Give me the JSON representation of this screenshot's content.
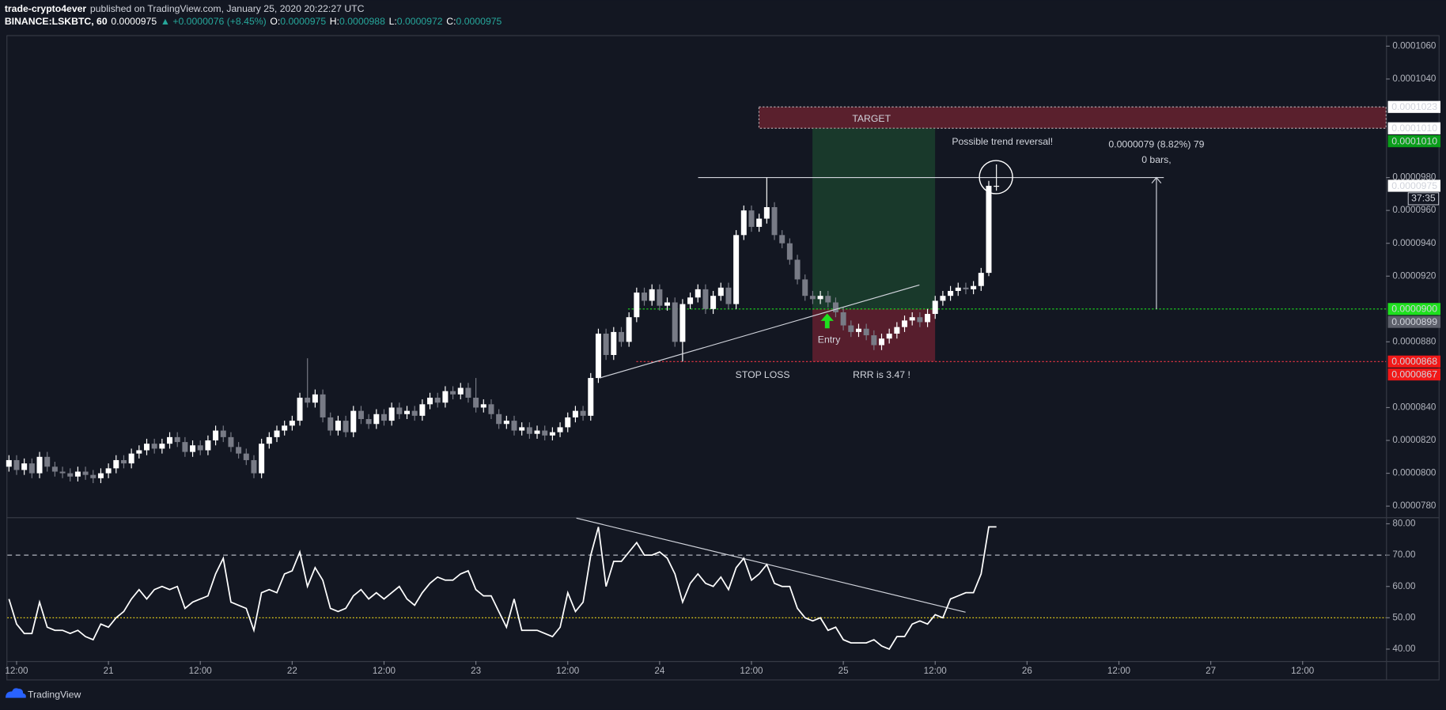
{
  "header": {
    "author": "trade-crypto4ever",
    "byline": "published on TradingView.com, January 25, 2020 20:22:27 UTC",
    "symbol": "BINANCE:LSKBTC, 60",
    "last": "0.0000975",
    "change": "▲ +0.0000076 (+8.45%)",
    "ohlc": [
      {
        "key": "O:",
        "value": "0.0000975"
      },
      {
        "key": "H:",
        "value": "0.0000988"
      },
      {
        "key": "L:",
        "value": "0.0000972"
      },
      {
        "key": "C:",
        "value": "0.0000975"
      }
    ]
  },
  "footer": {
    "brand": "TradingView"
  },
  "chart_data": [
    {
      "type": "candlestick",
      "up_color": "#ffffff",
      "down_color": "#787b86",
      "xlim": [
        -0.205,
        179.9
      ],
      "ylim": [
        7.738e-05,
        0.00010667
      ],
      "yticks": [
        {
          "value": 0.000106,
          "label": "0.0001060"
        },
        {
          "value": 0.000104,
          "label": "0.0001040"
        },
        {
          "value": 9.8e-05,
          "label": "0.0000980"
        },
        {
          "value": 9.6e-05,
          "label": "0.0000960"
        },
        {
          "value": 9.4e-05,
          "label": "0.0000940"
        },
        {
          "value": 9.2e-05,
          "label": "0.0000920"
        },
        {
          "value": 8.8e-05,
          "label": "0.0000880"
        },
        {
          "value": 8.4e-05,
          "label": "0.0000840"
        },
        {
          "value": 8.2e-05,
          "label": "0.0000820"
        },
        {
          "value": 8e-05,
          "label": "0.0000800"
        },
        {
          "value": 7.8e-05,
          "label": "0.0000780"
        }
      ],
      "price_labels": [
        {
          "value": 0.0001023,
          "label": "0.0001023",
          "color": "#ffffff",
          "text_color": "#131722"
        },
        {
          "value": 0.000101,
          "label": "0.0001010",
          "color": "#ffffff",
          "text_color": "#131722"
        },
        {
          "value": 0.000101,
          "label": "0.0001010",
          "color": "#0a9e1a",
          "text_color": "#ffffff"
        },
        {
          "value": 9.75e-05,
          "label": "0.0000975",
          "color": "#ffffff",
          "text_color": "#131722"
        },
        {
          "value": 9e-05,
          "label": "0.0000900",
          "color": "#1ee01e",
          "text_color": "#131722"
        },
        {
          "value": 8.99e-05,
          "label": "0.0000899",
          "color": "#5d606b",
          "text_color": "#ffffff"
        },
        {
          "value": 8.68e-05,
          "label": "0.0000868",
          "color": "#f21818",
          "text_color": "#ffffff"
        },
        {
          "value": 8.67e-05,
          "label": "0.0000867",
          "color": "#f21818",
          "text_color": "#ffffff"
        }
      ],
      "countdown": "37:35",
      "annotations": {
        "target": "TARGET",
        "reversal": "Possible trend reversal!",
        "measure": "0.0000079 (8.82%) 79",
        "bars": "0 bars,",
        "entry": "Entry",
        "stop": "STOP LOSS",
        "rrr": "RRR is 3.47 !"
      },
      "open": [
        8.04e-05,
        8.08e-05,
        8.02e-05,
        8.06e-05,
        8e-05,
        8.1e-05,
        8.04e-05,
        8.01e-05,
        8e-05,
        7.98e-05,
        8.01e-05,
        7.99e-05,
        7.97e-05,
        8e-05,
        8.03e-05,
        8.08e-05,
        8.06e-05,
        8.12e-05,
        8.14e-05,
        8.18e-05,
        8.15e-05,
        8.18e-05,
        8.22e-05,
        8.19e-05,
        8.13e-05,
        8.17e-05,
        8.14e-05,
        8.2e-05,
        8.26e-05,
        8.22e-05,
        8.16e-05,
        8.12e-05,
        8.08e-05,
        8e-05,
        8.18e-05,
        8.22e-05,
        8.26e-05,
        8.29e-05,
        8.32e-05,
        8.46e-05,
        8.43e-05,
        8.48e-05,
        8.34e-05,
        8.26e-05,
        8.32e-05,
        8.25e-05,
        8.38e-05,
        8.33e-05,
        8.3e-05,
        8.36e-05,
        8.32e-05,
        8.4e-05,
        8.36e-05,
        8.38e-05,
        8.35e-05,
        8.42e-05,
        8.46e-05,
        8.43e-05,
        8.5e-05,
        8.48e-05,
        8.52e-05,
        8.46e-05,
        8.4e-05,
        8.42e-05,
        8.36e-05,
        8.3e-05,
        8.32e-05,
        8.26e-05,
        8.28e-05,
        8.24e-05,
        8.26e-05,
        8.23e-05,
        8.25e-05,
        8.28e-05,
        8.34e-05,
        8.38e-05,
        8.35e-05,
        8.58e-05,
        8.85e-05,
        8.72e-05,
        8.86e-05,
        8.8e-05,
        8.95e-05,
        9.1e-05,
        9.05e-05,
        9.12e-05,
        9.02e-05,
        9.04e-05,
        8.8e-05,
        9.03e-05,
        9.07e-05,
        9.12e-05,
        9e-05,
        9.08e-05,
        9.13e-05,
        9.03e-05,
        9.45e-05,
        9.6e-05,
        9.5e-05,
        9.55e-05,
        9.62e-05,
        9.45e-05,
        9.4e-05,
        9.3e-05,
        9.18e-05,
        9.08e-05,
        9.06e-05,
        9.08e-05,
        9.04e-05,
        8.98e-05,
        8.9e-05,
        8.86e-05,
        8.88e-05,
        8.84e-05,
        8.78e-05,
        8.82e-05,
        8.85e-05,
        8.89e-05,
        8.93e-05,
        8.95e-05,
        8.92e-05,
        8.97e-05,
        9.05e-05,
        9.08e-05,
        9.11e-05,
        9.13e-05,
        9.12e-05,
        9.14e-05,
        9.22e-05,
        9.75e-05
      ],
      "high": [
        8.11e-05,
        8.11e-05,
        8.09e-05,
        8.09e-05,
        8.13e-05,
        8.13e-05,
        8.07e-05,
        8.04e-05,
        8.03e-05,
        8.04e-05,
        8.04e-05,
        8.02e-05,
        8.03e-05,
        8.06e-05,
        8.11e-05,
        8.11e-05,
        8.15e-05,
        8.17e-05,
        8.21e-05,
        8.21e-05,
        8.21e-05,
        8.25e-05,
        8.25e-05,
        8.22e-05,
        8.2e-05,
        8.2e-05,
        8.23e-05,
        8.29e-05,
        8.29e-05,
        8.25e-05,
        8.19e-05,
        8.15e-05,
        8.11e-05,
        8.21e-05,
        8.25e-05,
        8.29e-05,
        8.32e-05,
        8.35e-05,
        8.49e-05,
        8.7e-05,
        8.51e-05,
        8.51e-05,
        8.37e-05,
        8.35e-05,
        8.35e-05,
        8.41e-05,
        8.41e-05,
        8.36e-05,
        8.39e-05,
        8.39e-05,
        8.43e-05,
        8.43e-05,
        8.41e-05,
        8.41e-05,
        8.45e-05,
        8.49e-05,
        8.49e-05,
        8.53e-05,
        8.53e-05,
        8.55e-05,
        8.55e-05,
        8.58e-05,
        8.45e-05,
        8.45e-05,
        8.39e-05,
        8.35e-05,
        8.35e-05,
        8.31e-05,
        8.31e-05,
        8.29e-05,
        8.29e-05,
        8.28e-05,
        8.31e-05,
        8.37e-05,
        8.41e-05,
        8.41e-05,
        8.61e-05,
        8.88e-05,
        8.88e-05,
        8.89e-05,
        8.89e-05,
        8.98e-05,
        9.13e-05,
        9.13e-05,
        9.15e-05,
        9.15e-05,
        9.07e-05,
        9.07e-05,
        9.06e-05,
        9.1e-05,
        9.15e-05,
        9.15e-05,
        9.11e-05,
        9.16e-05,
        9.16e-05,
        9.48e-05,
        9.63e-05,
        9.63e-05,
        9.58e-05,
        9.8e-05,
        9.65e-05,
        9.48e-05,
        9.43e-05,
        9.33e-05,
        9.21e-05,
        9.11e-05,
        9.11e-05,
        9.11e-05,
        9.07e-05,
        9.01e-05,
        8.93e-05,
        8.91e-05,
        8.91e-05,
        8.87e-05,
        8.85e-05,
        8.88e-05,
        8.92e-05,
        8.96e-05,
        8.98e-05,
        8.98e-05,
        9e-05,
        9.08e-05,
        9.11e-05,
        9.14e-05,
        9.16e-05,
        9.16e-05,
        9.17e-05,
        9.25e-05,
        9.78e-05,
        9.88e-05
      ],
      "low": [
        8.01e-05,
        7.99e-05,
        7.99e-05,
        7.97e-05,
        7.97e-05,
        8.01e-05,
        7.98e-05,
        7.97e-05,
        7.95e-05,
        7.95e-05,
        7.96e-05,
        7.94e-05,
        7.94e-05,
        7.97e-05,
        8e-05,
        8.03e-05,
        8.03e-05,
        8.09e-05,
        8.11e-05,
        8.12e-05,
        8.12e-05,
        8.15e-05,
        8.16e-05,
        8.1e-05,
        8.1e-05,
        8.11e-05,
        8.11e-05,
        8.17e-05,
        8.19e-05,
        8.13e-05,
        8.09e-05,
        8.05e-05,
        7.97e-05,
        7.97e-05,
        8.15e-05,
        8.19e-05,
        8.23e-05,
        8.26e-05,
        8.29e-05,
        8.4e-05,
        8.4e-05,
        8.31e-05,
        8.23e-05,
        8.23e-05,
        8.22e-05,
        8.22e-05,
        8.3e-05,
        8.27e-05,
        8.27e-05,
        8.29e-05,
        8.29e-05,
        8.33e-05,
        8.33e-05,
        8.32e-05,
        8.32e-05,
        8.39e-05,
        8.4e-05,
        8.4e-05,
        8.45e-05,
        8.45e-05,
        8.43e-05,
        8.37e-05,
        8.37e-05,
        8.33e-05,
        8.27e-05,
        8.27e-05,
        8.23e-05,
        8.23e-05,
        8.21e-05,
        8.21e-05,
        8.2e-05,
        8.2e-05,
        8.22e-05,
        8.25e-05,
        8.31e-05,
        8.32e-05,
        8.32e-05,
        8.55e-05,
        8.69e-05,
        8.69e-05,
        8.77e-05,
        8.77e-05,
        8.92e-05,
        9.02e-05,
        9.02e-05,
        8.99e-05,
        8.99e-05,
        8.77e-05,
        8.68e-05,
        9e-05,
        9.04e-05,
        8.97e-05,
        8.97e-05,
        9.05e-05,
        9e-05,
        9e-05,
        9.42e-05,
        9.47e-05,
        9.47e-05,
        9.52e-05,
        9.42e-05,
        9.37e-05,
        9.27e-05,
        9.15e-05,
        9.05e-05,
        9.03e-05,
        9.03e-05,
        9.01e-05,
        8.95e-05,
        8.87e-05,
        8.83e-05,
        8.83e-05,
        8.81e-05,
        8.75e-05,
        8.75e-05,
        8.79e-05,
        8.82e-05,
        8.86e-05,
        8.9e-05,
        8.89e-05,
        8.89e-05,
        8.94e-05,
        9.02e-05,
        9.05e-05,
        9.08e-05,
        9.09e-05,
        9.09e-05,
        9.11e-05,
        9.2e-05,
        9.72e-05
      ],
      "close": [
        8.08e-05,
        8.02e-05,
        8.06e-05,
        8e-05,
        8.1e-05,
        8.04e-05,
        8.01e-05,
        8e-05,
        7.98e-05,
        8.01e-05,
        7.99e-05,
        7.97e-05,
        8e-05,
        8.03e-05,
        8.08e-05,
        8.06e-05,
        8.12e-05,
        8.14e-05,
        8.18e-05,
        8.15e-05,
        8.18e-05,
        8.22e-05,
        8.19e-05,
        8.13e-05,
        8.17e-05,
        8.14e-05,
        8.2e-05,
        8.26e-05,
        8.22e-05,
        8.16e-05,
        8.12e-05,
        8.08e-05,
        8e-05,
        8.18e-05,
        8.22e-05,
        8.26e-05,
        8.29e-05,
        8.32e-05,
        8.46e-05,
        8.43e-05,
        8.48e-05,
        8.34e-05,
        8.26e-05,
        8.32e-05,
        8.25e-05,
        8.38e-05,
        8.33e-05,
        8.3e-05,
        8.36e-05,
        8.32e-05,
        8.4e-05,
        8.36e-05,
        8.38e-05,
        8.35e-05,
        8.42e-05,
        8.46e-05,
        8.43e-05,
        8.5e-05,
        8.48e-05,
        8.52e-05,
        8.46e-05,
        8.4e-05,
        8.42e-05,
        8.36e-05,
        8.3e-05,
        8.32e-05,
        8.26e-05,
        8.28e-05,
        8.24e-05,
        8.26e-05,
        8.23e-05,
        8.25e-05,
        8.28e-05,
        8.34e-05,
        8.38e-05,
        8.35e-05,
        8.58e-05,
        8.85e-05,
        8.72e-05,
        8.86e-05,
        8.8e-05,
        8.95e-05,
        9.1e-05,
        9.05e-05,
        9.12e-05,
        9.02e-05,
        9.04e-05,
        8.8e-05,
        9.03e-05,
        9.07e-05,
        9.12e-05,
        9e-05,
        9.08e-05,
        9.13e-05,
        9.03e-05,
        9.45e-05,
        9.6e-05,
        9.5e-05,
        9.55e-05,
        9.62e-05,
        9.45e-05,
        9.4e-05,
        9.3e-05,
        9.18e-05,
        9.08e-05,
        9.06e-05,
        9.08e-05,
        9.04e-05,
        8.98e-05,
        8.9e-05,
        8.86e-05,
        8.88e-05,
        8.84e-05,
        8.78e-05,
        8.82e-05,
        8.85e-05,
        8.89e-05,
        8.93e-05,
        8.95e-05,
        8.92e-05,
        8.97e-05,
        9.05e-05,
        9.08e-05,
        9.11e-05,
        9.13e-05,
        9.12e-05,
        9.14e-05,
        9.22e-05,
        9.75e-05,
        9.75e-05
      ]
    },
    {
      "type": "line",
      "color": "#ffffff",
      "xlim": [
        -0.205,
        179.9
      ],
      "ylim": [
        36.2,
        81.8
      ],
      "yticks": [
        {
          "value": 80,
          "label": "80.00"
        },
        {
          "value": 70,
          "label": "70.00"
        },
        {
          "value": 60,
          "label": "60.00"
        },
        {
          "value": 50,
          "label": "50.00"
        },
        {
          "value": 40,
          "label": "40.00"
        }
      ],
      "xticks": [
        {
          "value": 1,
          "label": "12:00"
        },
        {
          "value": 13,
          "label": "21"
        },
        {
          "value": 25,
          "label": "12:00"
        },
        {
          "value": 37,
          "label": "22"
        },
        {
          "value": 49,
          "label": "12:00"
        },
        {
          "value": 61,
          "label": "23"
        },
        {
          "value": 73,
          "label": "12:00"
        },
        {
          "value": 85,
          "label": "24"
        },
        {
          "value": 97,
          "label": "12:00"
        },
        {
          "value": 109,
          "label": "25"
        },
        {
          "value": 121,
          "label": "12:00"
        },
        {
          "value": 133,
          "label": "26"
        },
        {
          "value": 145,
          "label": "12:00"
        },
        {
          "value": 157,
          "label": "27"
        },
        {
          "value": 169,
          "label": "12:00"
        }
      ],
      "reference_lines": [
        {
          "value": 70,
          "color": "#b2b5be",
          "style": "dashed"
        },
        {
          "value": 50,
          "color": "#e8d11a",
          "style": "dotted"
        }
      ],
      "values": [
        56,
        48,
        45,
        45,
        55,
        47,
        46,
        46,
        45,
        46,
        44,
        43,
        48,
        47,
        50,
        52,
        56,
        59,
        56,
        59,
        60,
        59,
        60,
        53,
        55,
        56,
        57,
        64,
        69,
        55,
        54,
        53,
        46,
        58,
        59,
        58,
        64,
        65,
        71,
        60,
        66,
        62,
        53,
        52,
        53,
        57,
        59,
        56,
        58,
        56,
        58,
        60,
        56,
        54,
        58,
        61,
        63,
        62,
        62,
        64,
        65,
        59,
        57,
        57,
        52,
        47,
        56,
        46,
        46,
        46,
        45,
        44,
        47,
        58,
        52,
        55,
        70,
        79,
        60,
        68,
        68,
        71,
        74,
        70,
        70,
        71,
        69,
        64,
        55,
        61,
        64,
        61,
        60,
        63,
        59,
        66,
        69,
        62,
        64,
        67,
        61,
        60,
        60,
        53,
        50,
        49,
        50,
        46,
        47,
        43,
        42,
        42,
        42,
        43,
        41,
        40,
        44,
        44,
        48,
        49,
        48,
        51,
        50,
        56,
        57,
        58,
        58,
        64,
        79,
        79
      ]
    }
  ]
}
